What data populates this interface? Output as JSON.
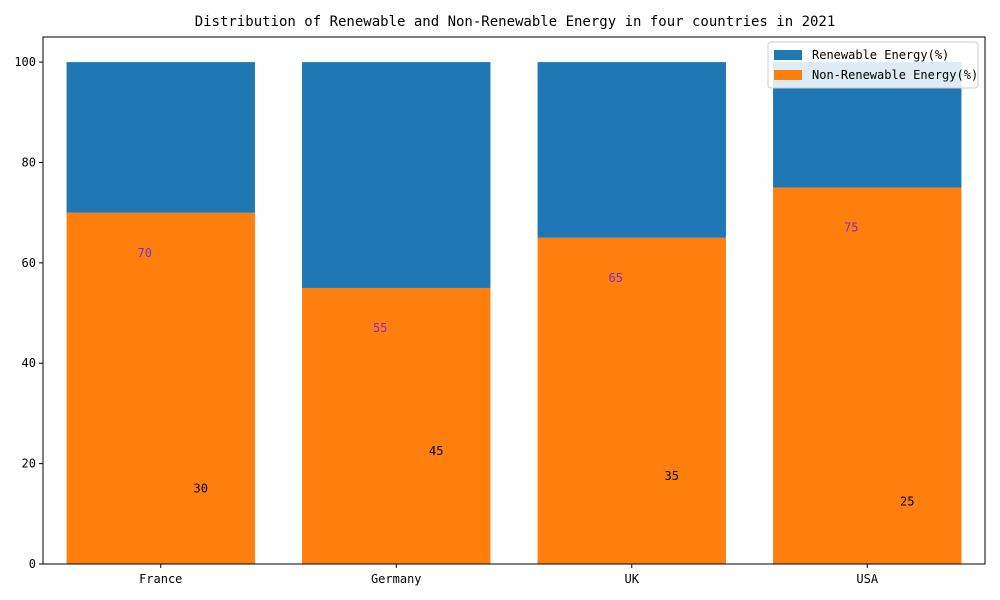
{
  "chart_data": {
    "type": "bar",
    "stacked": true,
    "title": "Distribution of Renewable and Non-Renewable Energy in four countries in 2021",
    "xlabel": "",
    "ylabel": "",
    "categories": [
      "France",
      "Germany",
      "UK",
      "USA"
    ],
    "ylim": [
      0,
      105
    ],
    "yticks": [
      0,
      20,
      40,
      60,
      80,
      100
    ],
    "series": [
      {
        "name": "Renewable Energy(%)",
        "values": [
          30,
          45,
          35,
          25
        ],
        "color": "#1f77b4",
        "label_color": "#000000"
      },
      {
        "name": "Non-Renewable Energy(%)",
        "values": [
          70,
          55,
          65,
          75
        ],
        "color": "#ff7f0e",
        "label_color": "#7b2fd6"
      }
    ],
    "legend_position": "top-right",
    "grid": false
  }
}
